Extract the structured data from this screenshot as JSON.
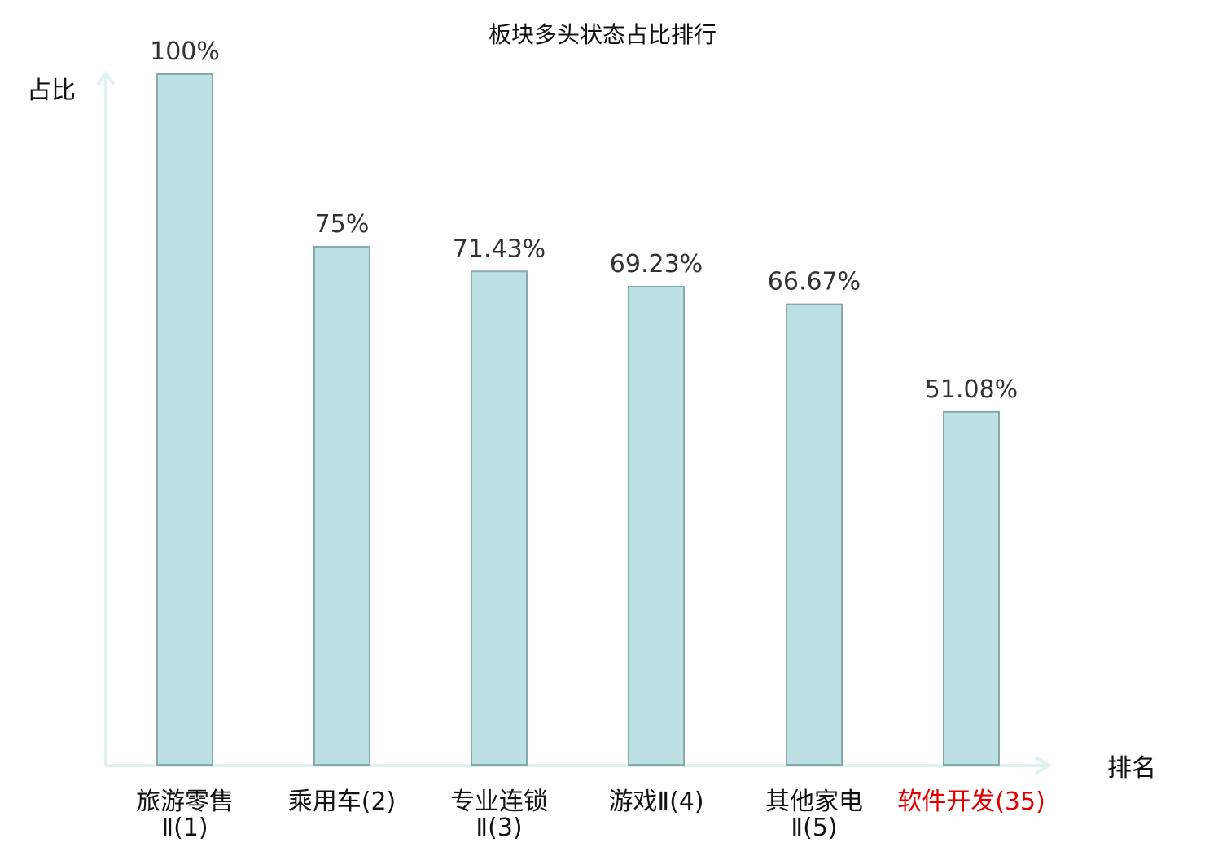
{
  "chart_data": {
    "type": "bar",
    "title": "板块多头状态占比排行",
    "ylabel": "占比",
    "xlabel": "排名",
    "ylim": [
      0,
      100
    ],
    "categories": [
      {
        "name": "旅游零售",
        "rank": "Ⅱ(1)",
        "wrap": true,
        "highlight": false
      },
      {
        "name": "乘用车",
        "rank": "(2)",
        "wrap": false,
        "highlight": false
      },
      {
        "name": "专业连锁",
        "rank": "Ⅱ(3)",
        "wrap": true,
        "highlight": false
      },
      {
        "name": "游戏",
        "rank": "Ⅱ(4)",
        "wrap": false,
        "highlight": false
      },
      {
        "name": "其他家电",
        "rank": "Ⅱ(5)",
        "wrap": true,
        "highlight": false
      },
      {
        "name": "软件开发",
        "rank": "(35)",
        "wrap": false,
        "highlight": true
      }
    ],
    "values": [
      100,
      75,
      71.43,
      69.23,
      66.67,
      51.08
    ],
    "value_labels": [
      "100%",
      "75%",
      "71.43%",
      "69.23%",
      "66.67%",
      "51.08%"
    ],
    "grid": false,
    "legend": "none",
    "colors": {
      "bar_fill": "#bde0e2",
      "bar_stroke": "#88a9ab",
      "axis": "#e0f2f0",
      "highlight": "#e00000"
    }
  }
}
